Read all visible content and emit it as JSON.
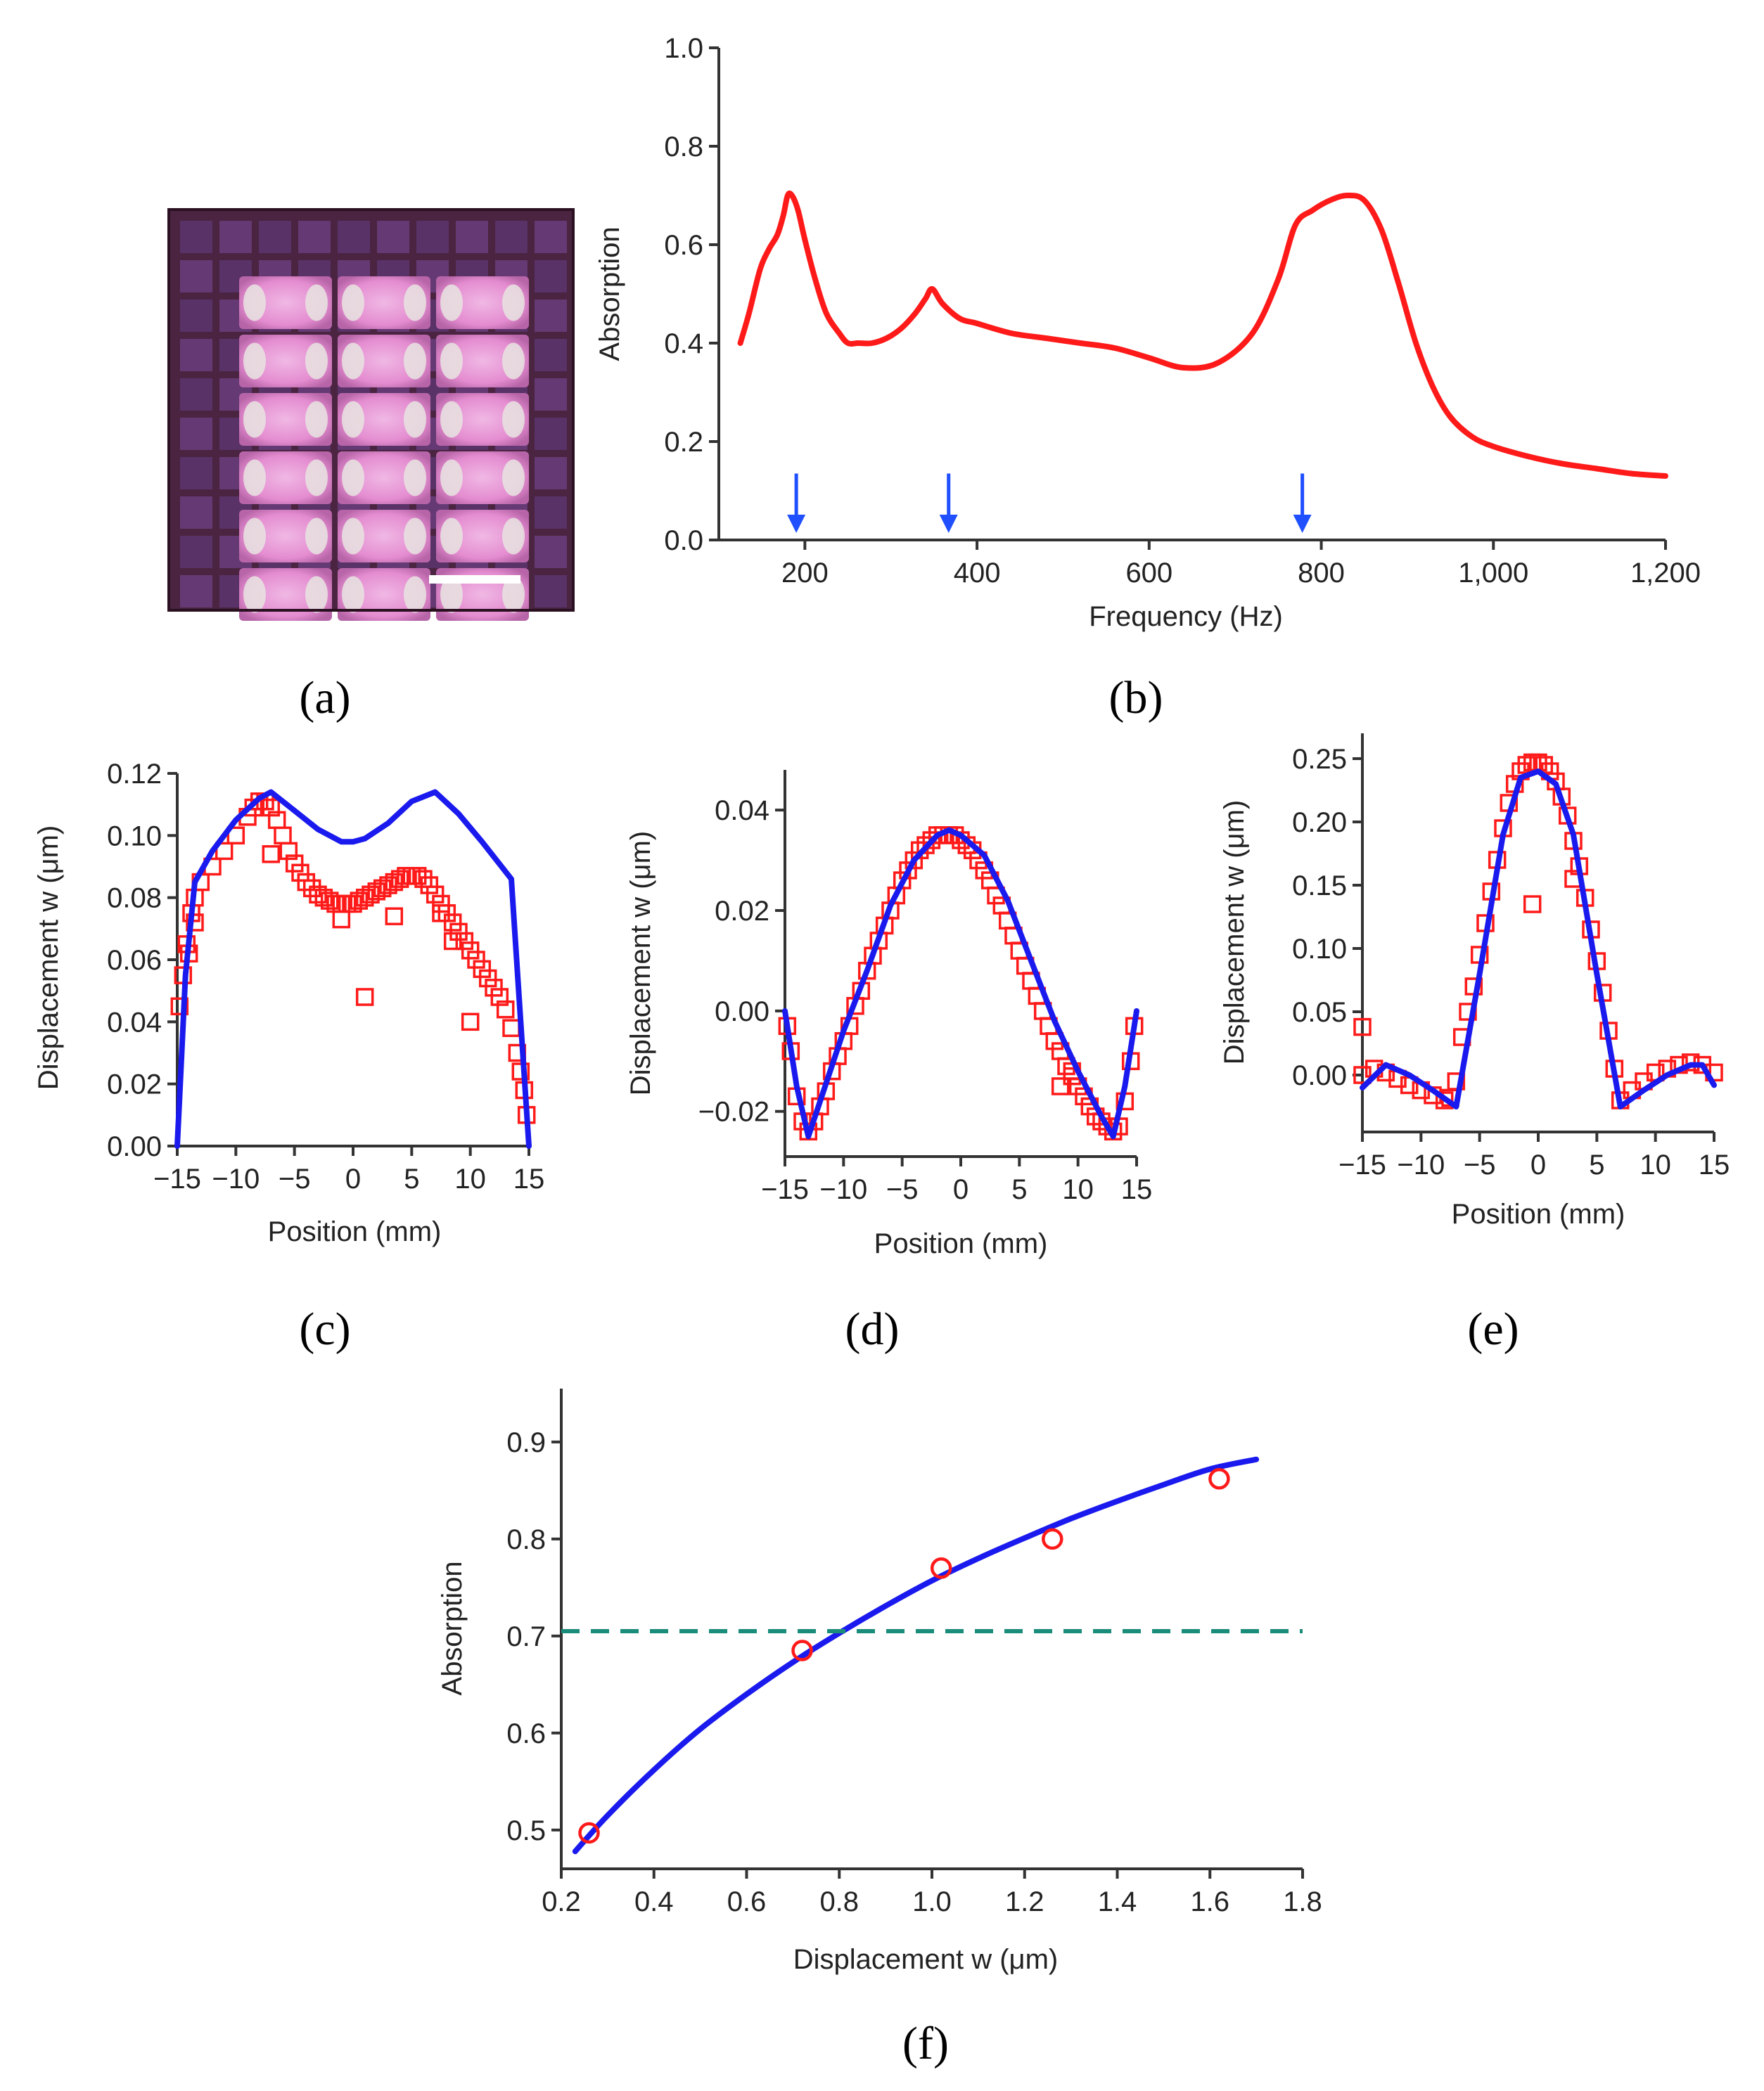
{
  "figure": {
    "captions": [
      "(a)",
      "(b)",
      "(c)",
      "(d)",
      "(e)",
      "(f)"
    ],
    "colors": {
      "measured": "#ff1a1a",
      "fit": "#1a1aee",
      "threshold": "#1a8c7a",
      "arrow": "#1f4fff"
    },
    "photo": {
      "name": "metamaterial-sample-photo",
      "rows": 6,
      "cols": 3,
      "scale_bar": "scale-bar"
    }
  },
  "chart_data": [
    {
      "id": "b",
      "type": "line",
      "xlabel": "Frequency (Hz)",
      "ylabel": "Absorption",
      "xlim": [
        100,
        1200
      ],
      "ylim": [
        0,
        1.0
      ],
      "xticks": [
        200,
        400,
        600,
        800,
        1000,
        1200
      ],
      "xtick_labels": [
        "200",
        "400",
        "600",
        "800",
        "1,000",
        "1,200"
      ],
      "yticks": [
        0.0,
        0.2,
        0.4,
        0.6,
        0.8,
        1.0
      ],
      "ytick_labels": [
        "0.0",
        "0.2",
        "0.4",
        "0.6",
        "0.8",
        "1.0"
      ],
      "arrows_at": [
        190,
        367,
        778
      ],
      "series": [
        {
          "x": [
            125,
            135,
            148,
            158,
            168,
            175,
            180,
            185,
            192,
            200,
            212,
            225,
            240,
            250,
            262,
            278,
            295,
            312,
            328,
            340,
            348,
            360,
            380,
            400,
            440,
            480,
            520,
            560,
            600,
            640,
            680,
            720,
            750,
            770,
            790,
            810,
            830,
            850,
            870,
            890,
            910,
            930,
            950,
            975,
            1000,
            1040,
            1080,
            1120,
            1160,
            1200
          ],
          "y": [
            0.4,
            0.46,
            0.55,
            0.59,
            0.62,
            0.66,
            0.7,
            0.7,
            0.67,
            0.61,
            0.53,
            0.46,
            0.42,
            0.4,
            0.4,
            0.4,
            0.41,
            0.43,
            0.46,
            0.49,
            0.51,
            0.48,
            0.45,
            0.44,
            0.42,
            0.41,
            0.4,
            0.39,
            0.37,
            0.35,
            0.36,
            0.42,
            0.53,
            0.64,
            0.67,
            0.69,
            0.7,
            0.69,
            0.63,
            0.52,
            0.4,
            0.31,
            0.25,
            0.21,
            0.19,
            0.17,
            0.155,
            0.145,
            0.135,
            0.13
          ]
        }
      ]
    },
    {
      "id": "c",
      "type": "line",
      "xlabel": "Position (mm)",
      "ylabel": "Displacement w (μm)",
      "xlim": [
        -15,
        15
      ],
      "ylim": [
        0,
        0.12
      ],
      "xticks": [
        -15,
        -10,
        -5,
        0,
        5,
        10,
        15
      ],
      "xtick_labels": [
        "−15",
        "−10",
        "−5",
        "0",
        "5",
        "10",
        "15"
      ],
      "yticks": [
        0,
        0.02,
        0.04,
        0.06,
        0.08,
        0.1,
        0.12
      ],
      "ytick_labels": [
        "0.00",
        "0.02",
        "0.04",
        "0.06",
        "0.08",
        "0.10",
        "0.12"
      ],
      "fit": {
        "x": [
          -15,
          -14.3,
          -13.5,
          -12,
          -10,
          -8,
          -7,
          -5,
          -3,
          -1,
          0,
          1,
          3,
          5,
          7,
          9,
          11,
          13.5,
          14.3,
          15
        ],
        "y": [
          0,
          0.055,
          0.085,
          0.095,
          0.105,
          0.112,
          0.114,
          0.108,
          0.102,
          0.098,
          0.098,
          0.099,
          0.104,
          0.111,
          0.114,
          0.107,
          0.098,
          0.086,
          0.04,
          0
        ]
      },
      "measured": {
        "x": [
          -14.8,
          -14.5,
          -14.2,
          -13.8,
          -13.5,
          -13,
          -12,
          -11,
          -10,
          -9,
          -8.5,
          -8,
          -7.5,
          -7,
          -6.5,
          -6,
          -5.5,
          -5,
          -4.5,
          -4,
          -3.5,
          -3,
          -2.5,
          -2,
          -1.5,
          -1,
          -0.5,
          0,
          0.5,
          1,
          1.5,
          2,
          2.5,
          3,
          3.5,
          4,
          4.5,
          5,
          5.5,
          6,
          6.5,
          7,
          7.5,
          8,
          8.5,
          9,
          9.5,
          10,
          10.5,
          11,
          11.5,
          12,
          12.5,
          13,
          13.5,
          14,
          14.3,
          14.6,
          14.8,
          -7,
          -1,
          1,
          3.5,
          7.5,
          8.5,
          10,
          -13.5,
          -14
        ],
        "y": [
          0.045,
          0.055,
          0.065,
          0.075,
          0.08,
          0.085,
          0.09,
          0.095,
          0.1,
          0.106,
          0.109,
          0.111,
          0.111,
          0.109,
          0.105,
          0.1,
          0.095,
          0.091,
          0.088,
          0.085,
          0.083,
          0.081,
          0.08,
          0.079,
          0.078,
          0.078,
          0.078,
          0.078,
          0.079,
          0.08,
          0.081,
          0.082,
          0.083,
          0.084,
          0.085,
          0.086,
          0.087,
          0.087,
          0.087,
          0.086,
          0.084,
          0.081,
          0.078,
          0.075,
          0.072,
          0.069,
          0.066,
          0.063,
          0.06,
          0.057,
          0.054,
          0.051,
          0.048,
          0.044,
          0.038,
          0.03,
          0.024,
          0.018,
          0.01,
          0.094,
          0.073,
          0.048,
          0.074,
          0.075,
          0.066,
          0.04,
          0.072,
          0.062
        ]
      }
    },
    {
      "id": "d",
      "type": "line",
      "xlabel": "Position (mm)",
      "ylabel": "Displacement w (μm)",
      "xlim": [
        -15,
        15
      ],
      "ylim": [
        -0.029,
        0.048
      ],
      "xticks": [
        -15,
        -10,
        -5,
        0,
        5,
        10,
        15
      ],
      "xtick_labels": [
        "−15",
        "−10",
        "−5",
        "0",
        "5",
        "10",
        "15"
      ],
      "yticks": [
        -0.02,
        0.0,
        0.02,
        0.04
      ],
      "ytick_labels": [
        "−0.02",
        "0.00",
        "0.02",
        "0.04"
      ],
      "fit": {
        "x": [
          -15,
          -14,
          -13,
          -12,
          -10,
          -8,
          -6,
          -4,
          -2,
          -1,
          0,
          2,
          4,
          6,
          8,
          10,
          12,
          13,
          14,
          15
        ],
        "y": [
          0.0,
          -0.015,
          -0.025,
          -0.018,
          -0.004,
          0.008,
          0.021,
          0.03,
          0.035,
          0.036,
          0.035,
          0.031,
          0.022,
          0.01,
          -0.002,
          -0.012,
          -0.021,
          -0.025,
          -0.015,
          0.0
        ]
      },
      "measured": {
        "x": [
          -14.8,
          -14.5,
          -14,
          -13.5,
          -13,
          -12.5,
          -12,
          -11.5,
          -11,
          -10.5,
          -10,
          -9.5,
          -9,
          -8.5,
          -8,
          -7.5,
          -7,
          -6.5,
          -6,
          -5.5,
          -5,
          -4.5,
          -4,
          -3.5,
          -3,
          -2.5,
          -2,
          -1.5,
          -1,
          -0.5,
          0,
          0.5,
          1,
          1.5,
          2,
          2.5,
          3,
          3.5,
          4,
          4.5,
          5,
          5.5,
          6,
          6.5,
          7,
          7.5,
          8,
          8.5,
          9,
          9.5,
          10,
          10.5,
          11,
          11.5,
          12,
          12.5,
          13,
          13.5,
          14,
          14.5,
          14.8,
          8.5,
          9.5
        ],
        "y": [
          -0.003,
          -0.008,
          -0.017,
          -0.022,
          -0.024,
          -0.022,
          -0.019,
          -0.016,
          -0.012,
          -0.009,
          -0.006,
          -0.003,
          0.001,
          0.004,
          0.008,
          0.011,
          0.014,
          0.017,
          0.02,
          0.023,
          0.026,
          0.028,
          0.03,
          0.032,
          0.033,
          0.034,
          0.035,
          0.035,
          0.035,
          0.035,
          0.034,
          0.033,
          0.032,
          0.03,
          0.028,
          0.026,
          0.023,
          0.021,
          0.018,
          0.015,
          0.012,
          0.009,
          0.006,
          0.003,
          0.0,
          -0.003,
          -0.006,
          -0.008,
          -0.011,
          -0.013,
          -0.015,
          -0.017,
          -0.019,
          -0.021,
          -0.022,
          -0.023,
          -0.024,
          -0.023,
          -0.018,
          -0.01,
          -0.003,
          -0.015,
          -0.012
        ]
      }
    },
    {
      "id": "e",
      "type": "line",
      "xlabel": "Position (mm)",
      "ylabel": "Displacement w (μm)",
      "xlim": [
        -15,
        15
      ],
      "ylim": [
        -0.045,
        0.27
      ],
      "xticks": [
        -15,
        -10,
        -5,
        0,
        5,
        10,
        15
      ],
      "xtick_labels": [
        "−15",
        "−10",
        "−5",
        "0",
        "5",
        "10",
        "15"
      ],
      "yticks": [
        0.0,
        0.05,
        0.1,
        0.15,
        0.2,
        0.25
      ],
      "ytick_labels": [
        "0.00",
        "0.05",
        "0.10",
        "0.15",
        "0.20",
        "0.25"
      ],
      "fit": {
        "x": [
          -15,
          -13,
          -11,
          -9,
          -7,
          -5,
          -3,
          -1.5,
          0,
          1.5,
          3,
          5,
          7,
          9,
          11,
          13,
          14,
          15
        ],
        "y": [
          -0.01,
          0.008,
          0.0,
          -0.012,
          -0.025,
          0.08,
          0.19,
          0.235,
          0.24,
          0.23,
          0.19,
          0.08,
          -0.025,
          -0.012,
          0.0,
          0.008,
          0.008,
          -0.008
        ]
      },
      "measured": {
        "x": [
          -15,
          -14,
          -13,
          -12,
          -11,
          -10,
          -9,
          -8,
          -7.5,
          -7,
          -6.5,
          -6,
          -5.5,
          -5,
          -4.5,
          -4,
          -3.5,
          -3,
          -2.5,
          -2,
          -1.5,
          -1,
          -0.5,
          0,
          0.5,
          1,
          1.5,
          2,
          2.5,
          3,
          3.5,
          4,
          4.5,
          5,
          5.5,
          6,
          6.5,
          7,
          8,
          9,
          10,
          11,
          12,
          13,
          14,
          15,
          -15,
          -0.5,
          3
        ],
        "y": [
          0.0,
          0.005,
          0.002,
          -0.003,
          -0.008,
          -0.012,
          -0.016,
          -0.02,
          -0.018,
          -0.005,
          0.03,
          0.05,
          0.07,
          0.095,
          0.12,
          0.145,
          0.17,
          0.195,
          0.215,
          0.23,
          0.24,
          0.245,
          0.247,
          0.247,
          0.245,
          0.24,
          0.232,
          0.22,
          0.205,
          0.185,
          0.165,
          0.14,
          0.115,
          0.09,
          0.065,
          0.035,
          0.005,
          -0.02,
          -0.012,
          -0.005,
          0.002,
          0.005,
          0.008,
          0.01,
          0.008,
          0.002,
          0.038,
          0.135,
          0.155
        ]
      }
    },
    {
      "id": "f",
      "type": "scatter",
      "xlabel": "Displacement w (μm)",
      "ylabel": "Absorption",
      "xlim": [
        0.2,
        1.8
      ],
      "ylim": [
        0.46,
        0.955
      ],
      "xticks": [
        0.2,
        0.4,
        0.6,
        0.8,
        1.0,
        1.2,
        1.4,
        1.6,
        1.8
      ],
      "xtick_labels": [
        "0.2",
        "0.4",
        "0.6",
        "0.8",
        "1.0",
        "1.2",
        "1.4",
        "1.6",
        "1.8"
      ],
      "yticks": [
        0.5,
        0.6,
        0.7,
        0.8,
        0.9
      ],
      "ytick_labels": [
        "0.5",
        "0.6",
        "0.7",
        "0.8",
        "0.9"
      ],
      "threshold": 0.705,
      "fit": {
        "x": [
          0.23,
          0.3,
          0.4,
          0.5,
          0.6,
          0.7,
          0.8,
          0.9,
          1.0,
          1.1,
          1.2,
          1.3,
          1.4,
          1.5,
          1.6,
          1.7
        ],
        "y": [
          0.478,
          0.515,
          0.562,
          0.604,
          0.64,
          0.673,
          0.703,
          0.731,
          0.757,
          0.78,
          0.801,
          0.821,
          0.839,
          0.856,
          0.872,
          0.882
        ]
      },
      "measured": {
        "x": [
          0.26,
          0.72,
          1.02,
          1.26,
          1.62
        ],
        "y": [
          0.497,
          0.685,
          0.77,
          0.8,
          0.862
        ]
      }
    }
  ]
}
